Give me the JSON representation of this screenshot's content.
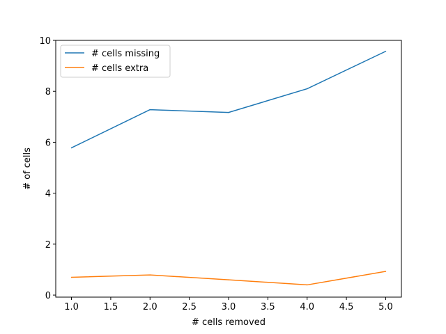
{
  "chart_data": {
    "type": "line",
    "title": "",
    "xlabel": "# cells removed",
    "ylabel": "# of cells",
    "x": [
      1.0,
      2.0,
      3.0,
      4.0,
      5.0
    ],
    "xlim": [
      0.8,
      5.2
    ],
    "ylim": [
      -0.08,
      10
    ],
    "xticks": [
      1.0,
      1.5,
      2.0,
      2.5,
      3.0,
      3.5,
      4.0,
      4.5,
      5.0
    ],
    "xtick_labels": [
      "1.0",
      "1.5",
      "2.0",
      "2.5",
      "3.0",
      "3.5",
      "4.0",
      "4.5",
      "5.0"
    ],
    "yticks": [
      0,
      2,
      4,
      6,
      8,
      10
    ],
    "ytick_labels": [
      "0",
      "2",
      "4",
      "6",
      "8",
      "10"
    ],
    "grid": false,
    "legend_position": "top-left",
    "series": [
      {
        "name": "# cells missing",
        "color": "#1f77b4",
        "values": [
          5.78,
          7.28,
          7.17,
          8.1,
          9.57
        ]
      },
      {
        "name": "# cells extra",
        "color": "#ff7f0e",
        "values": [
          0.7,
          0.79,
          0.6,
          0.4,
          0.93
        ]
      }
    ]
  }
}
